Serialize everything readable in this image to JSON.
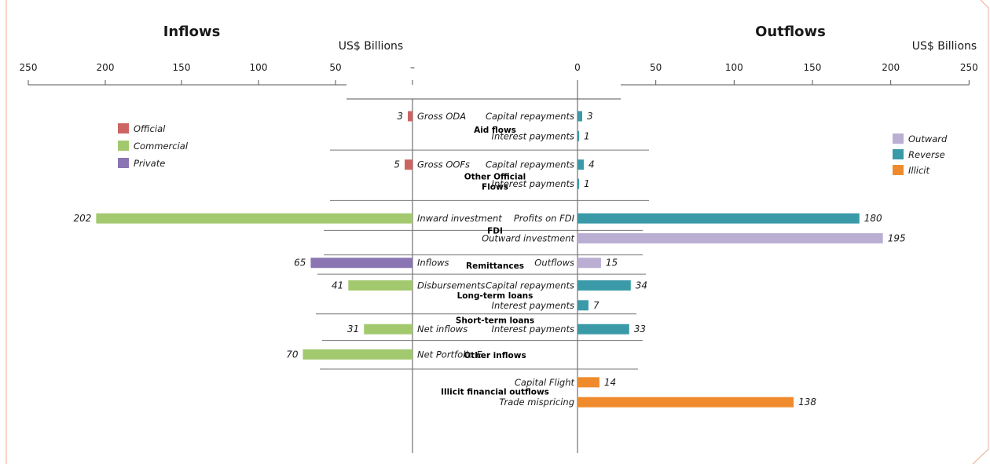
{
  "chart_data": {
    "type": "bar",
    "left": {
      "title": "Inflows",
      "unit": "US$ Billions"
    },
    "right": {
      "title": "Outflows",
      "unit": "US$ Billions"
    },
    "left_ticks": [
      "250",
      "200",
      "150",
      "100",
      "50",
      "–"
    ],
    "right_ticks": [
      "0",
      "50",
      "100",
      "150",
      "200",
      "250"
    ],
    "axis_range": [
      0,
      250
    ],
    "colors": {
      "Official": "#cd6462",
      "Commercial": "#a3c96f",
      "Private": "#8b75b3",
      "Outward": "#bbaed3",
      "Reverse": "#3a9aa8",
      "Illicit": "#ef8b2c"
    },
    "legend_left": [
      "Official",
      "Commercial",
      "Private"
    ],
    "legend_right": [
      "Outward",
      "Reverse",
      "Illicit"
    ],
    "groups": [
      {
        "name": "Aid flows",
        "row": 1,
        "inflows": [
          {
            "label": "Gross ODA",
            "value": 3,
            "category": "Official",
            "row": 0
          }
        ],
        "outflows": [
          {
            "label": "Capital repayments",
            "value": 3,
            "category": "Reverse",
            "row": 0
          },
          {
            "label": "Interest payments",
            "value": 1,
            "category": "Reverse",
            "row": 1.5
          }
        ]
      },
      {
        "name": "Other Official\nFlows",
        "row": 4.9,
        "inflows": [
          {
            "label": "Gross OOFs",
            "value": 5,
            "category": "Official",
            "row": 3.65
          }
        ],
        "outflows": [
          {
            "label": "Capital repayments",
            "value": 4,
            "category": "Reverse",
            "row": 3.65
          },
          {
            "label": "Interest payments",
            "value": 1,
            "category": "Reverse",
            "row": 5.1
          }
        ]
      },
      {
        "name": "FDI",
        "row": 8.6,
        "inflows": [
          {
            "label": "Inward investment",
            "value": 202,
            "category": "Commercial",
            "row": 7.7
          }
        ],
        "outflows": [
          {
            "label": "Profits on FDI",
            "value": 180,
            "category": "Reverse",
            "row": 7.7
          },
          {
            "label": "Outward investment",
            "value": 195,
            "category": "Outward",
            "row": 9.2
          }
        ]
      },
      {
        "name": "Remittances",
        "row": 11.25,
        "inflows": [
          {
            "label": "Inflows",
            "value": 65,
            "category": "Private",
            "row": 11.05
          }
        ],
        "outflows": [
          {
            "label": "Outflows",
            "value": 15,
            "category": "Outward",
            "row": 11.05
          }
        ]
      },
      {
        "name": "Long-term loans",
        "row": 13.5,
        "inflows": [
          {
            "label": "Disbursements",
            "value": 41,
            "category": "Commercial",
            "row": 12.75
          }
        ],
        "outflows": [
          {
            "label": "Capital repayments",
            "value": 34,
            "category": "Reverse",
            "row": 12.75
          },
          {
            "label": "Interest payments",
            "value": 7,
            "category": "Reverse",
            "row": 14.25
          }
        ]
      },
      {
        "name": "Short-term loans",
        "row": 15.35,
        "inflows": [
          {
            "label": "Net inflows",
            "value": 31,
            "category": "Commercial",
            "row": 16.05
          }
        ],
        "outflows": [
          {
            "label": "Interest payments",
            "value": 33,
            "category": "Reverse",
            "row": 16.05
          }
        ]
      },
      {
        "name": "Other inflows",
        "row": 18,
        "inflows": [
          {
            "label": "Net Portfolio E",
            "value": 70,
            "category": "Commercial",
            "row": 17.95
          }
        ],
        "outflows": []
      },
      {
        "name": "Illicit financial outflows",
        "row": 20.75,
        "inflows": [],
        "outflows": [
          {
            "label": "Capital Flight",
            "value": 14,
            "category": "Illicit",
            "row": 20.05
          },
          {
            "label": "Trade mispricing",
            "value": 138,
            "category": "Illicit",
            "row": 21.55
          }
        ]
      }
    ],
    "separators": [
      2.55,
      6.35,
      8.6,
      10.45,
      11.9,
      14.9,
      16.9,
      19.05
    ]
  }
}
